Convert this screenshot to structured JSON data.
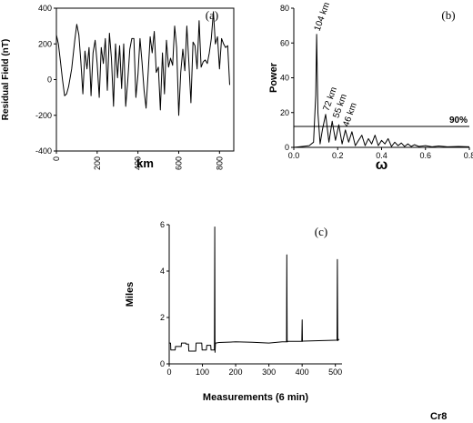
{
  "figure_code": "Cr8",
  "chart_data": [
    {
      "panel": "(a)",
      "type": "line",
      "xlabel": "km",
      "ylabel": "Residual Field (nT)",
      "xlim": [
        0,
        870
      ],
      "ylim": [
        -400,
        400
      ],
      "xticks": [
        0,
        200,
        400,
        600,
        800
      ],
      "yticks": [
        -400,
        -200,
        0,
        200,
        400
      ],
      "series": [
        {
          "x": [
            0,
            10,
            20,
            30,
            40,
            50,
            60,
            75,
            90,
            100,
            110,
            120,
            130,
            140,
            150,
            160,
            170,
            180,
            190,
            200,
            210,
            220,
            230,
            240,
            250,
            260,
            270,
            280,
            290,
            300,
            310,
            320,
            330,
            340,
            350,
            360,
            370,
            380,
            390,
            400,
            410,
            420,
            430,
            440,
            450,
            460,
            470,
            480,
            490,
            500,
            510,
            520,
            530,
            540,
            550,
            560,
            570,
            580,
            590,
            600,
            610,
            620,
            630,
            640,
            650,
            660,
            670,
            680,
            690,
            700,
            710,
            720,
            730,
            740,
            750,
            760,
            770,
            780,
            790,
            800,
            810,
            820,
            830,
            840,
            850
          ],
          "y": [
            250,
            200,
            100,
            0,
            -90,
            -80,
            -40,
            60,
            220,
            310,
            250,
            100,
            -80,
            160,
            60,
            180,
            -90,
            150,
            220,
            90,
            -100,
            180,
            90,
            230,
            -60,
            260,
            120,
            -150,
            200,
            10,
            190,
            -50,
            200,
            -150,
            -10,
            170,
            230,
            230,
            -100,
            30,
            230,
            100,
            -60,
            -160,
            40,
            240,
            150,
            270,
            40,
            70,
            -170,
            150,
            -80,
            220,
            70,
            120,
            80,
            300,
            180,
            -200,
            40,
            170,
            50,
            300,
            90,
            -130,
            210,
            190,
            60,
            330,
            70,
            100,
            110,
            90,
            150,
            230,
            380,
            200,
            240,
            60,
            230,
            200,
            180,
            190,
            -30
          ]
        }
      ]
    },
    {
      "panel": "(b)",
      "type": "line",
      "xlabel": "ω",
      "ylabel": "Power",
      "xlim": [
        0,
        0.8
      ],
      "ylim": [
        0,
        80
      ],
      "xticks": [
        "0.0",
        "0.2",
        "0.4",
        "0.6",
        "0.8"
      ],
      "yticks": [
        0,
        20,
        40,
        60,
        80
      ],
      "series": [
        {
          "x": [
            0.0,
            0.04,
            0.07,
            0.09,
            0.1,
            0.104,
            0.11,
            0.12,
            0.13,
            0.145,
            0.16,
            0.175,
            0.19,
            0.205,
            0.22,
            0.235,
            0.25,
            0.265,
            0.28,
            0.295,
            0.31,
            0.325,
            0.34,
            0.355,
            0.37,
            0.385,
            0.4,
            0.415,
            0.43,
            0.445,
            0.46,
            0.475,
            0.49,
            0.505,
            0.52,
            0.535,
            0.55,
            0.57,
            0.6,
            0.63,
            0.66,
            0.7,
            0.75,
            0.8
          ],
          "y": [
            0,
            0.5,
            1,
            3,
            30,
            65,
            20,
            2,
            10,
            19,
            3,
            15,
            4,
            13,
            2,
            10,
            3,
            9,
            1,
            4,
            7,
            1,
            5,
            2,
            7,
            1,
            4,
            2,
            5,
            0.5,
            3,
            1,
            2.5,
            0.5,
            2,
            0.5,
            1.5,
            0.5,
            1,
            0.3,
            0.8,
            0.3,
            0.5,
            0.3
          ]
        }
      ],
      "reference_line": {
        "y": 12,
        "label": "90%"
      },
      "annotations": [
        {
          "x": 0.104,
          "y": 65,
          "text": "104 km"
        },
        {
          "x": 0.145,
          "y": 19,
          "text": "72 km"
        },
        {
          "x": 0.19,
          "y": 15,
          "text": "55 km"
        },
        {
          "x": 0.235,
          "y": 10,
          "text": "46 km"
        }
      ]
    },
    {
      "panel": "(c)",
      "type": "line",
      "xlabel": "Measurements (6 min)",
      "ylabel": "Miles",
      "xlim": [
        0,
        520
      ],
      "ylim": [
        0,
        6
      ],
      "xticks": [
        0,
        100,
        200,
        300,
        400,
        500
      ],
      "yticks": [
        0,
        2,
        4,
        6
      ],
      "series": [
        {
          "x": [
            0,
            4,
            5,
            18,
            19,
            36,
            37,
            50,
            51,
            58,
            59,
            80,
            81,
            98,
            99,
            112,
            113,
            125,
            126,
            136,
            137,
            138,
            139,
            140,
            150,
            200,
            250,
            300,
            340,
            353,
            354,
            355,
            356,
            357,
            370,
            399,
            400,
            401,
            402,
            403,
            450,
            500,
            505,
            506,
            507,
            508,
            509,
            512
          ],
          "y": [
            0.9,
            0.9,
            0.6,
            0.6,
            0.75,
            0.75,
            0.9,
            0.9,
            0.85,
            0.85,
            0.55,
            0.55,
            0.9,
            0.9,
            0.6,
            0.6,
            0.8,
            0.8,
            0.6,
            0.6,
            5.9,
            0.5,
            0.85,
            0.9,
            0.92,
            0.95,
            0.93,
            0.9,
            0.95,
            0.95,
            4.7,
            0.95,
            0.95,
            0.97,
            0.97,
            0.97,
            1.9,
            0.97,
            0.98,
            0.98,
            1.0,
            1.02,
            1.02,
            4.5,
            1.0,
            1.02,
            1.05,
            1.05
          ]
        }
      ]
    }
  ]
}
